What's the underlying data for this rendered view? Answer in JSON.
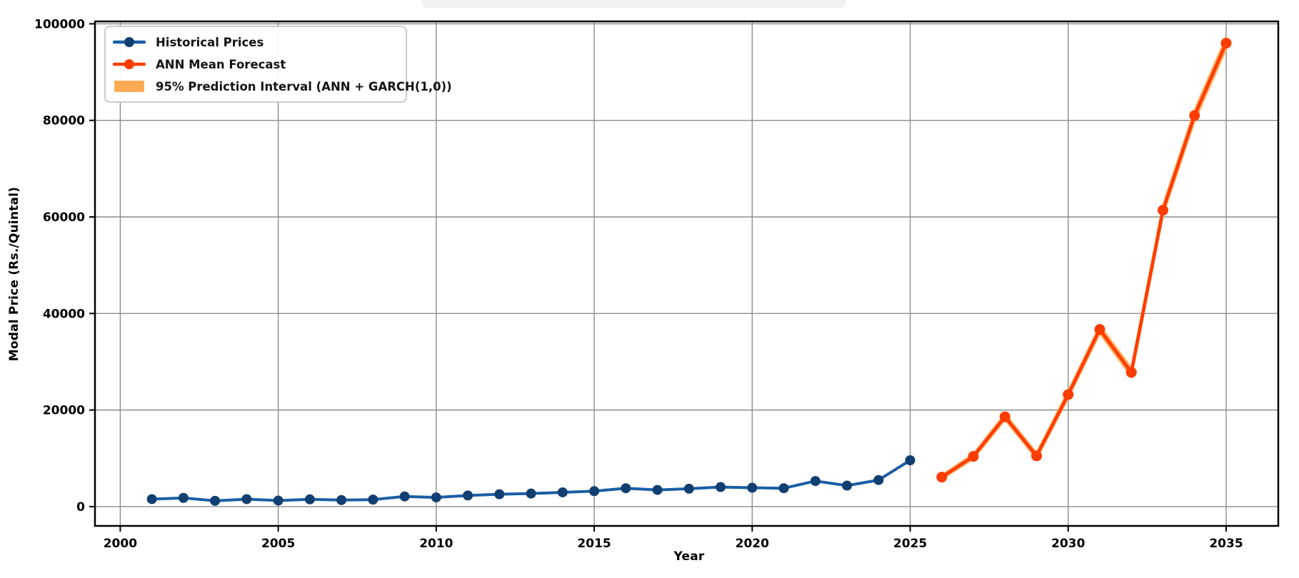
{
  "figure": {
    "background": "#ffffff",
    "artifact_color": "#f2f2f4"
  },
  "chart_data": {
    "type": "line",
    "title": "",
    "xlabel": "Year",
    "ylabel": "Modal Price (Rs./Quintal)",
    "xlim": [
      1999.2,
      2036.65
    ],
    "ylim": [
      -4000,
      100500
    ],
    "xticks": [
      2000,
      2005,
      2010,
      2015,
      2020,
      2025,
      2030,
      2035
    ],
    "yticks": [
      0,
      20000,
      40000,
      60000,
      80000,
      100000
    ],
    "grid": true,
    "grid_color": "#8c8c8c",
    "spine_color": "#000000",
    "legend_position": "upper-left",
    "series": [
      {
        "name": "Historical Prices",
        "color": "#1b5ea6",
        "marker_color": "#123f71",
        "x": [
          2001,
          2002,
          2003,
          2004,
          2005,
          2006,
          2007,
          2008,
          2009,
          2010,
          2011,
          2012,
          2013,
          2014,
          2015,
          2016,
          2017,
          2018,
          2019,
          2020,
          2021,
          2022,
          2023,
          2024,
          2025
        ],
        "y": [
          1550,
          1800,
          1200,
          1550,
          1250,
          1500,
          1350,
          1450,
          2100,
          1900,
          2300,
          2550,
          2700,
          2950,
          3200,
          3800,
          3450,
          3700,
          4050,
          3900,
          3800,
          5300,
          4350,
          5500,
          9600
        ]
      },
      {
        "name": "ANN Mean Forecast",
        "color": "#fb3d02",
        "marker_color": "#fb3d02",
        "x": [
          2026,
          2027,
          2028,
          2029,
          2030,
          2031,
          2032,
          2033,
          2034,
          2035
        ],
        "y": [
          6100,
          10400,
          18600,
          10500,
          23200,
          36700,
          27800,
          61400,
          81000,
          96000
        ]
      }
    ],
    "band": {
      "name": "95% Prediction Interval (ANN + GARCH(1,0))",
      "color": "#ffa64d",
      "opacity": 0.85,
      "x": [
        2026,
        2027,
        2028,
        2029,
        2030,
        2031,
        2032,
        2033,
        2034,
        2035
      ],
      "lower": [
        5700,
        9900,
        18000,
        9900,
        22500,
        35900,
        26900,
        60400,
        79900,
        94800
      ],
      "upper": [
        6500,
        10900,
        19200,
        11100,
        23900,
        37500,
        28700,
        62400,
        82100,
        97200
      ]
    }
  }
}
